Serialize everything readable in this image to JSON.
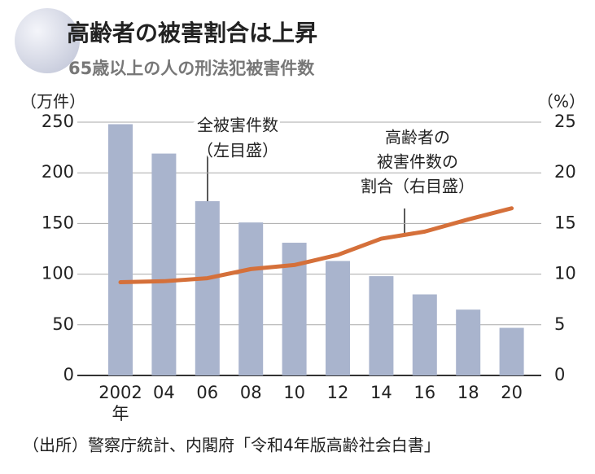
{
  "chart_data": {
    "type": "bar_line",
    "title": "高齢者の被害割合は上昇",
    "subtitle": "65歳以上の人の刑法犯被害件数",
    "y_unit": "（万件）",
    "y2_unit": "（%）",
    "categories": [
      "2002",
      "04",
      "06",
      "08",
      "10",
      "12",
      "14",
      "16",
      "18",
      "20"
    ],
    "category_suffix": "年",
    "series": [
      {
        "type": "bar",
        "color": "#a9b4cd",
        "axis": "y",
        "label_lines": [
          "全被害件数",
          "（左目盛）"
        ],
        "values": [
          248,
          219,
          172,
          151,
          131,
          113,
          98,
          80,
          65,
          47
        ]
      },
      {
        "type": "line",
        "color": "#d5703a",
        "axis": "y2",
        "label_lines": [
          "高齢者の",
          "被害件数の",
          "割合（右目盛）"
        ],
        "values": [
          9.2,
          9.3,
          9.6,
          10.5,
          10.9,
          11.9,
          13.5,
          14.2,
          15.4,
          16.5
        ]
      }
    ],
    "ylim": [
      0,
      250
    ],
    "yticks": [
      0,
      50,
      100,
      150,
      200,
      250
    ],
    "y2lim": [
      0,
      25
    ],
    "y2ticks": [
      0,
      5,
      10,
      15,
      20,
      25
    ],
    "grid": true,
    "source": "（出所）警察庁統計、内閣府「令和4年版高齢社会白書」"
  }
}
